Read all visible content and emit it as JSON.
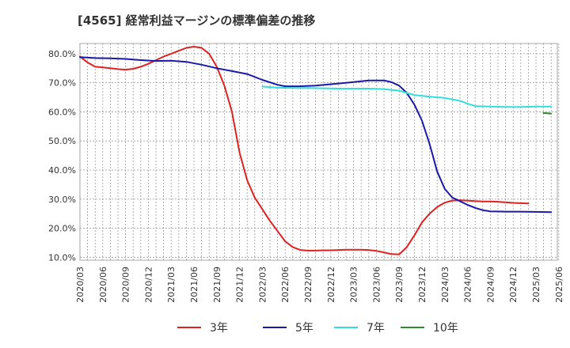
{
  "chart_data": {
    "type": "line",
    "title": "[4565]  経常利益マージンの標準偏差の推移",
    "x_ticks": [
      "2020/03",
      "2020/06",
      "2020/09",
      "2020/12",
      "2021/03",
      "2021/06",
      "2021/09",
      "2021/12",
      "2022/03",
      "2022/06",
      "2022/09",
      "2022/12",
      "2023/03",
      "2023/06",
      "2023/09",
      "2023/12",
      "2024/03",
      "2024/06",
      "2024/09",
      "2024/12",
      "2025/03",
      "2025/06"
    ],
    "y_ticks": [
      "10.0%",
      "20.0%",
      "30.0%",
      "40.0%",
      "50.0%",
      "60.0%",
      "70.0%",
      "80.0%"
    ],
    "ylim": [
      9.0,
      83.5
    ],
    "grid": true,
    "legend_position": "bottom",
    "series": [
      {
        "name": "3年",
        "color": "#dd2222",
        "values": [
          [
            0,
            79.0
          ],
          [
            1,
            77.0
          ],
          [
            2,
            75.5
          ],
          [
            3,
            75.3
          ],
          [
            4,
            75.0
          ],
          [
            5,
            74.7
          ],
          [
            6,
            74.5
          ],
          [
            7,
            74.8
          ],
          [
            8,
            75.5
          ],
          [
            9,
            76.5
          ],
          [
            10,
            77.8
          ],
          [
            11,
            79.0
          ],
          [
            12,
            80.0
          ],
          [
            13,
            81.0
          ],
          [
            14,
            82.0
          ],
          [
            15,
            82.4
          ],
          [
            16,
            82.0
          ],
          [
            17,
            80.0
          ],
          [
            18,
            75.5
          ],
          [
            19,
            69.0
          ],
          [
            20,
            60.0
          ],
          [
            21,
            46.0
          ],
          [
            22,
            36.5
          ],
          [
            23,
            30.5
          ],
          [
            24,
            26.5
          ],
          [
            25,
            22.5
          ],
          [
            26,
            19.0
          ],
          [
            27,
            15.5
          ],
          [
            28,
            13.5
          ],
          [
            29,
            12.5
          ],
          [
            30,
            12.3
          ],
          [
            31,
            12.3
          ],
          [
            32,
            12.4
          ],
          [
            33,
            12.4
          ],
          [
            34,
            12.5
          ],
          [
            35,
            12.6
          ],
          [
            36,
            12.6
          ],
          [
            37,
            12.6
          ],
          [
            38,
            12.5
          ],
          [
            39,
            12.2
          ],
          [
            40,
            11.7
          ],
          [
            41,
            11.1
          ],
          [
            42,
            11.0
          ],
          [
            43,
            13.5
          ],
          [
            44,
            17.5
          ],
          [
            45,
            22.0
          ],
          [
            46,
            25.0
          ],
          [
            47,
            27.3
          ],
          [
            48,
            28.8
          ],
          [
            49,
            29.5
          ],
          [
            50,
            29.6
          ],
          [
            51,
            29.5
          ],
          [
            52,
            29.3
          ],
          [
            53,
            29.2
          ],
          [
            54,
            29.2
          ],
          [
            55,
            29.1
          ],
          [
            56,
            28.9
          ],
          [
            57,
            28.7
          ],
          [
            58,
            28.6
          ],
          [
            59,
            28.5
          ]
        ]
      },
      {
        "name": "5年",
        "color": "#1a1aaa",
        "values": [
          [
            0,
            78.8
          ],
          [
            2,
            78.5
          ],
          [
            4,
            78.4
          ],
          [
            6,
            78.2
          ],
          [
            8,
            77.8
          ],
          [
            10,
            77.5
          ],
          [
            12,
            77.6
          ],
          [
            14,
            77.2
          ],
          [
            16,
            76.2
          ],
          [
            18,
            75.0
          ],
          [
            20,
            74.0
          ],
          [
            22,
            73.0
          ],
          [
            24,
            71.0
          ],
          [
            26,
            69.3
          ],
          [
            27,
            68.8
          ],
          [
            29,
            68.8
          ],
          [
            31,
            69.0
          ],
          [
            33,
            69.5
          ],
          [
            35,
            70.0
          ],
          [
            37,
            70.5
          ],
          [
            38,
            70.8
          ],
          [
            40,
            70.8
          ],
          [
            41,
            70.2
          ],
          [
            42,
            69.0
          ],
          [
            43,
            66.5
          ],
          [
            44,
            62.5
          ],
          [
            45,
            57.0
          ],
          [
            46,
            49.0
          ],
          [
            47,
            39.5
          ],
          [
            48,
            33.5
          ],
          [
            49,
            30.5
          ],
          [
            50,
            29.3
          ],
          [
            51,
            28.0
          ],
          [
            52,
            27.0
          ],
          [
            53,
            26.2
          ],
          [
            54,
            25.8
          ],
          [
            56,
            25.7
          ],
          [
            58,
            25.7
          ],
          [
            60,
            25.6
          ],
          [
            62,
            25.5
          ]
        ]
      },
      {
        "name": "7年",
        "color": "#33dddd",
        "values": [
          [
            24,
            68.7
          ],
          [
            26,
            68.3
          ],
          [
            28,
            68.2
          ],
          [
            30,
            68.2
          ],
          [
            32,
            68.1
          ],
          [
            34,
            68.0
          ],
          [
            36,
            68.0
          ],
          [
            38,
            68.0
          ],
          [
            40,
            67.8
          ],
          [
            42,
            67.3
          ],
          [
            43,
            66.5
          ],
          [
            44,
            65.8
          ],
          [
            46,
            65.2
          ],
          [
            48,
            64.8
          ],
          [
            50,
            63.8
          ],
          [
            51,
            62.8
          ],
          [
            52,
            62.0
          ],
          [
            54,
            61.8
          ],
          [
            56,
            61.7
          ],
          [
            58,
            61.7
          ],
          [
            60,
            61.8
          ],
          [
            62,
            61.8
          ]
        ]
      },
      {
        "name": "10年",
        "color": "#2e8b2e",
        "values": [
          [
            61,
            59.6
          ],
          [
            62,
            59.4
          ]
        ]
      }
    ]
  }
}
